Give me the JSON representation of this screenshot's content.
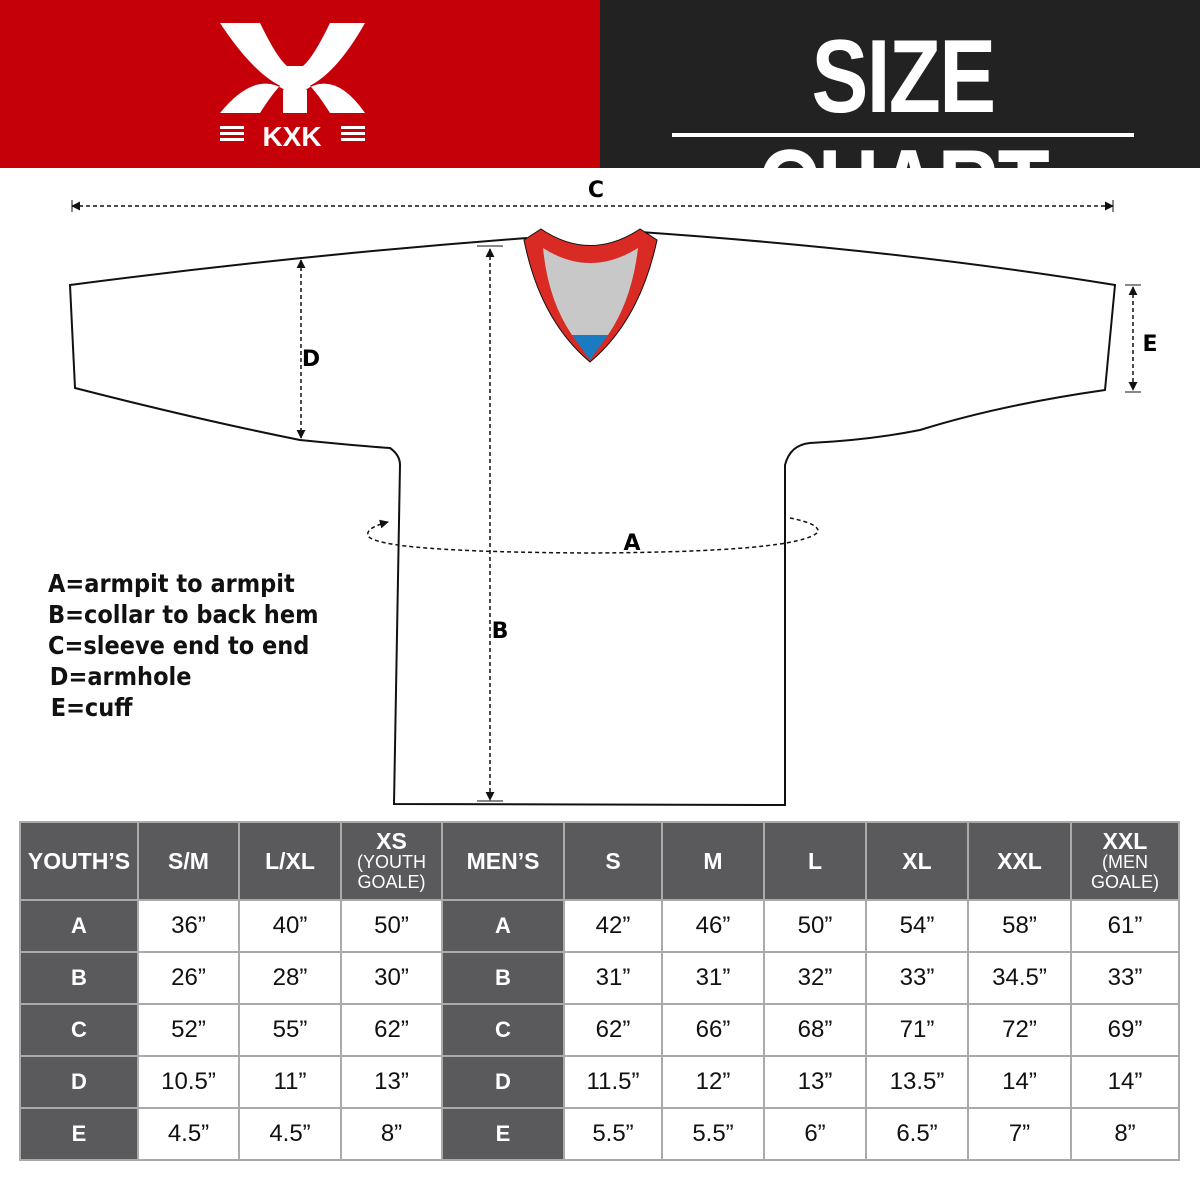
{
  "brand": {
    "logo_text": "KXK",
    "primary_color": "#c50008",
    "dark_color": "#222222"
  },
  "header": {
    "title": "SIZE CHART"
  },
  "diagram": {
    "labels": {
      "A": "A",
      "B": "B",
      "C": "C",
      "D": "D",
      "E": "E"
    },
    "collar_colors": {
      "trim": "#d92a24",
      "inner": "#c8c8c8",
      "tag": "#1a7bc1"
    }
  },
  "legend": [
    "A=armpit to armpit",
    "B=collar to back hem",
    "C=sleeve end to end",
    "D=armhole",
    "E=cuff"
  ],
  "table": {
    "youth_header": "YOUTH’S",
    "youth_sizes": [
      {
        "main": "S/M",
        "sub": ""
      },
      {
        "main": "L/XL",
        "sub": ""
      },
      {
        "main": "XS",
        "sub": "(YOUTH GOALE)"
      }
    ],
    "men_header": "MEN’S",
    "men_sizes": [
      {
        "main": "S",
        "sub": ""
      },
      {
        "main": "M",
        "sub": ""
      },
      {
        "main": "L",
        "sub": ""
      },
      {
        "main": "XL",
        "sub": ""
      },
      {
        "main": "XXL",
        "sub": ""
      },
      {
        "main": "XXL",
        "sub": "(MEN GOALE)"
      }
    ],
    "rows": [
      {
        "label": "A",
        "youth": [
          "36”",
          "40”",
          "50”"
        ],
        "men": [
          "42”",
          "46”",
          "50”",
          "54”",
          "58”",
          "61”"
        ]
      },
      {
        "label": "B",
        "youth": [
          "26”",
          "28”",
          "30”"
        ],
        "men": [
          "31”",
          "31”",
          "32”",
          "33”",
          "34.5”",
          "33”"
        ]
      },
      {
        "label": "C",
        "youth": [
          "52”",
          "55”",
          "62”"
        ],
        "men": [
          "62”",
          "66”",
          "68”",
          "71”",
          "72”",
          "69”"
        ]
      },
      {
        "label": "D",
        "youth": [
          "10.5”",
          "11”",
          "13”"
        ],
        "men": [
          "11.5”",
          "12”",
          "13”",
          "13.5”",
          "14”",
          "14”"
        ]
      },
      {
        "label": "E",
        "youth": [
          "4.5”",
          "4.5”",
          "8”"
        ],
        "men": [
          "5.5”",
          "5.5”",
          "6”",
          "6.5”",
          "7”",
          "8”"
        ]
      }
    ]
  }
}
